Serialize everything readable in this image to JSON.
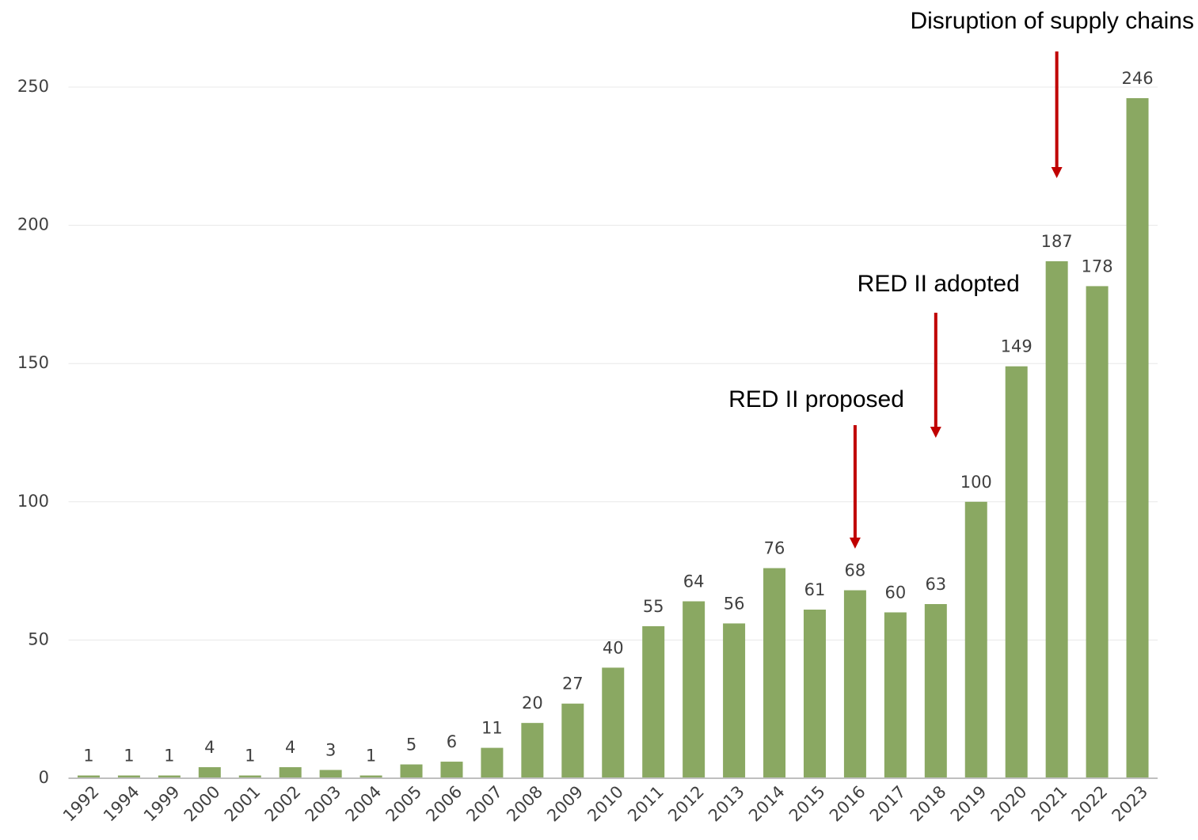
{
  "chart_data": {
    "type": "bar",
    "categories": [
      "1992",
      "1994",
      "1999",
      "2000",
      "2001",
      "2002",
      "2003",
      "2004",
      "2005",
      "2006",
      "2007",
      "2008",
      "2009",
      "2010",
      "2011",
      "2012",
      "2013",
      "2014",
      "2015",
      "2016",
      "2017",
      "2018",
      "2019",
      "2020",
      "2021",
      "2022",
      "2023"
    ],
    "values": [
      1,
      1,
      1,
      4,
      1,
      4,
      3,
      1,
      5,
      6,
      11,
      20,
      27,
      40,
      55,
      64,
      56,
      76,
      61,
      68,
      60,
      63,
      100,
      149,
      187,
      178,
      246
    ],
    "color": "#8aa862",
    "ylim": [
      0,
      250
    ],
    "yticks": [
      0,
      50,
      100,
      150,
      200,
      250
    ],
    "grid": true,
    "annotations": [
      {
        "text": "Disruption of supply chains",
        "category": "2021"
      },
      {
        "text": "RED II adopted",
        "category": "2018"
      },
      {
        "text": "RED II proposed",
        "category": "2016"
      }
    ]
  }
}
